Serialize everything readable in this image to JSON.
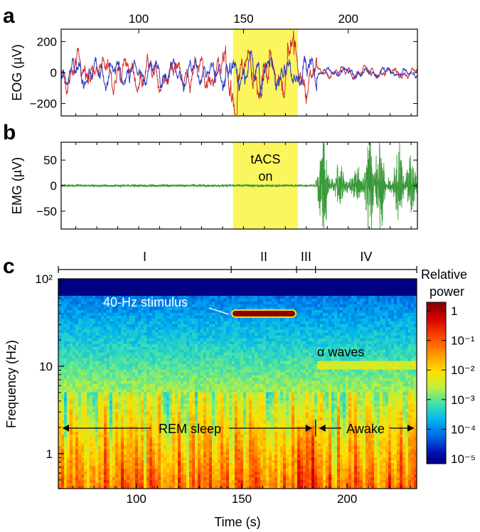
{
  "panels": {
    "a": "a",
    "b": "b",
    "c": "c"
  },
  "x_axis": {
    "label": "Time (s)",
    "range": [
      63,
      233
    ],
    "ticks": [
      100,
      150,
      200
    ],
    "tick_labels": [
      "100",
      "150",
      "200"
    ]
  },
  "stim_window": {
    "start": 145,
    "end": 176,
    "color": "#fbf65e"
  },
  "chart_data": [
    {
      "id": "eog",
      "type": "line",
      "title": "",
      "xlabel": "",
      "ylabel": "EOG (µV)",
      "xlim": [
        63,
        233
      ],
      "ylim": [
        -280,
        280
      ],
      "yticks": [
        200,
        0,
        -200
      ],
      "ytick_labels": [
        "200",
        "0",
        "−200"
      ],
      "series": [
        {
          "name": "EOG channel 1",
          "color": "#d12a2a",
          "amp_uV": 110
        },
        {
          "name": "EOG channel 2",
          "color": "#2a3ac4",
          "amp_uV": 95
        }
      ]
    },
    {
      "id": "emg",
      "type": "line",
      "title": "",
      "xlabel": "",
      "ylabel": "EMG (µV)",
      "xlim": [
        63,
        233
      ],
      "ylim": [
        -85,
        85
      ],
      "yticks": [
        50,
        0,
        -50
      ],
      "ytick_labels": [
        "50",
        "0",
        "−50"
      ],
      "annotation": [
        "tACS",
        "on"
      ],
      "series": [
        {
          "name": "EMG",
          "color": "#3a9a3a",
          "baseline_noise_uV": 2,
          "bursts": [
            {
              "t": 188,
              "amp": 75
            },
            {
              "t": 196,
              "amp": 40
            },
            {
              "t": 204,
              "amp": 30
            },
            {
              "t": 210,
              "amp": 85
            },
            {
              "t": 215,
              "amp": 70
            },
            {
              "t": 224,
              "amp": 65
            },
            {
              "t": 230,
              "amp": 55
            }
          ]
        }
      ]
    },
    {
      "id": "spectrogram",
      "type": "heatmap",
      "title": "",
      "xlabel": "Time (s)",
      "ylabel": "Frequency (Hz)",
      "xlim": [
        63,
        233
      ],
      "ylim_log10": [
        -0.4,
        2.0
      ],
      "yticks": [
        1,
        10,
        100
      ],
      "ytick_labels": [
        "1",
        "10",
        "10²"
      ],
      "stimulus": {
        "freq_hz": 40,
        "t_start": 145,
        "t_end": 176
      },
      "alpha_band": {
        "freq_hz": 10,
        "t_start": 186,
        "t_end": 233
      },
      "phases": [
        {
          "label": "I",
          "start": 63,
          "end": 145
        },
        {
          "label": "II",
          "start": 145,
          "end": 176
        },
        {
          "label": "III",
          "start": 176,
          "end": 185
        },
        {
          "label": "IV",
          "start": 185,
          "end": 233
        }
      ],
      "annotations": {
        "stimulus": "40-Hz stimulus",
        "alpha": "α waves",
        "rem": "REM sleep",
        "awake": "Awake"
      },
      "colorbar": {
        "title_line1": "Relative",
        "title_line2": "power",
        "scale": "log",
        "range": [
          1e-05,
          1
        ],
        "tick_labels": [
          "1",
          "10⁻¹",
          "10⁻²",
          "10⁻³",
          "10⁻⁴",
          "10⁻⁵"
        ]
      }
    }
  ]
}
